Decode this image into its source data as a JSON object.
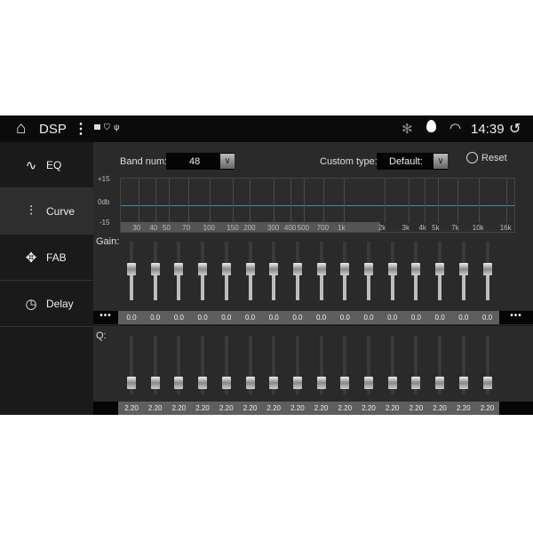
{
  "statusbar": {
    "title": "DSP",
    "time": "14:39",
    "icons": [
      "home-icon",
      "more-vert-icon",
      "image-icon",
      "shield-icon",
      "usb-icon",
      "bluetooth-icon",
      "location-icon",
      "wifi-icon",
      "back-icon"
    ]
  },
  "sidebar": {
    "items": [
      {
        "label": "EQ",
        "icon": "waveform-icon"
      },
      {
        "label": "Curve",
        "icon": "sliders-icon"
      },
      {
        "label": "FAB",
        "icon": "fader-balance-icon"
      },
      {
        "label": "Delay",
        "icon": "clock-icon"
      }
    ],
    "active": 1
  },
  "controls": {
    "band_label": "Band num:",
    "band_value": "48",
    "custom_label": "Custom type:",
    "custom_value": "Default:",
    "reset_label": "Reset"
  },
  "chart_data": {
    "type": "line",
    "y_ticks": [
      "+15",
      "0db",
      "-15"
    ],
    "ylim": [
      -15,
      15
    ],
    "x_ticks": [
      "30",
      "40",
      "50",
      "70",
      "100",
      "150",
      "200",
      "300",
      "400",
      "500",
      "700",
      "1k",
      "2k",
      "3k",
      "4k",
      "5k",
      "7k",
      "10k",
      "16k"
    ],
    "curve_color": "#3a8fb0",
    "grid": true
  },
  "gain": {
    "label": "Gain:",
    "values": [
      "0.0",
      "0.0",
      "0.0",
      "0.0",
      "0.0",
      "0.0",
      "0.0",
      "0.0",
      "0.0",
      "0.0",
      "0.0",
      "0.0",
      "0.0",
      "0.0",
      "0.0",
      "0.0"
    ],
    "more": "•••"
  },
  "q": {
    "label": "Q:",
    "values": [
      "2.20",
      "2.20",
      "2.20",
      "2.20",
      "2.20",
      "2.20",
      "2.20",
      "2.20",
      "2.20",
      "2.20",
      "2.20",
      "2.20",
      "2.20",
      "2.20",
      "2.20",
      "2.20"
    ]
  }
}
